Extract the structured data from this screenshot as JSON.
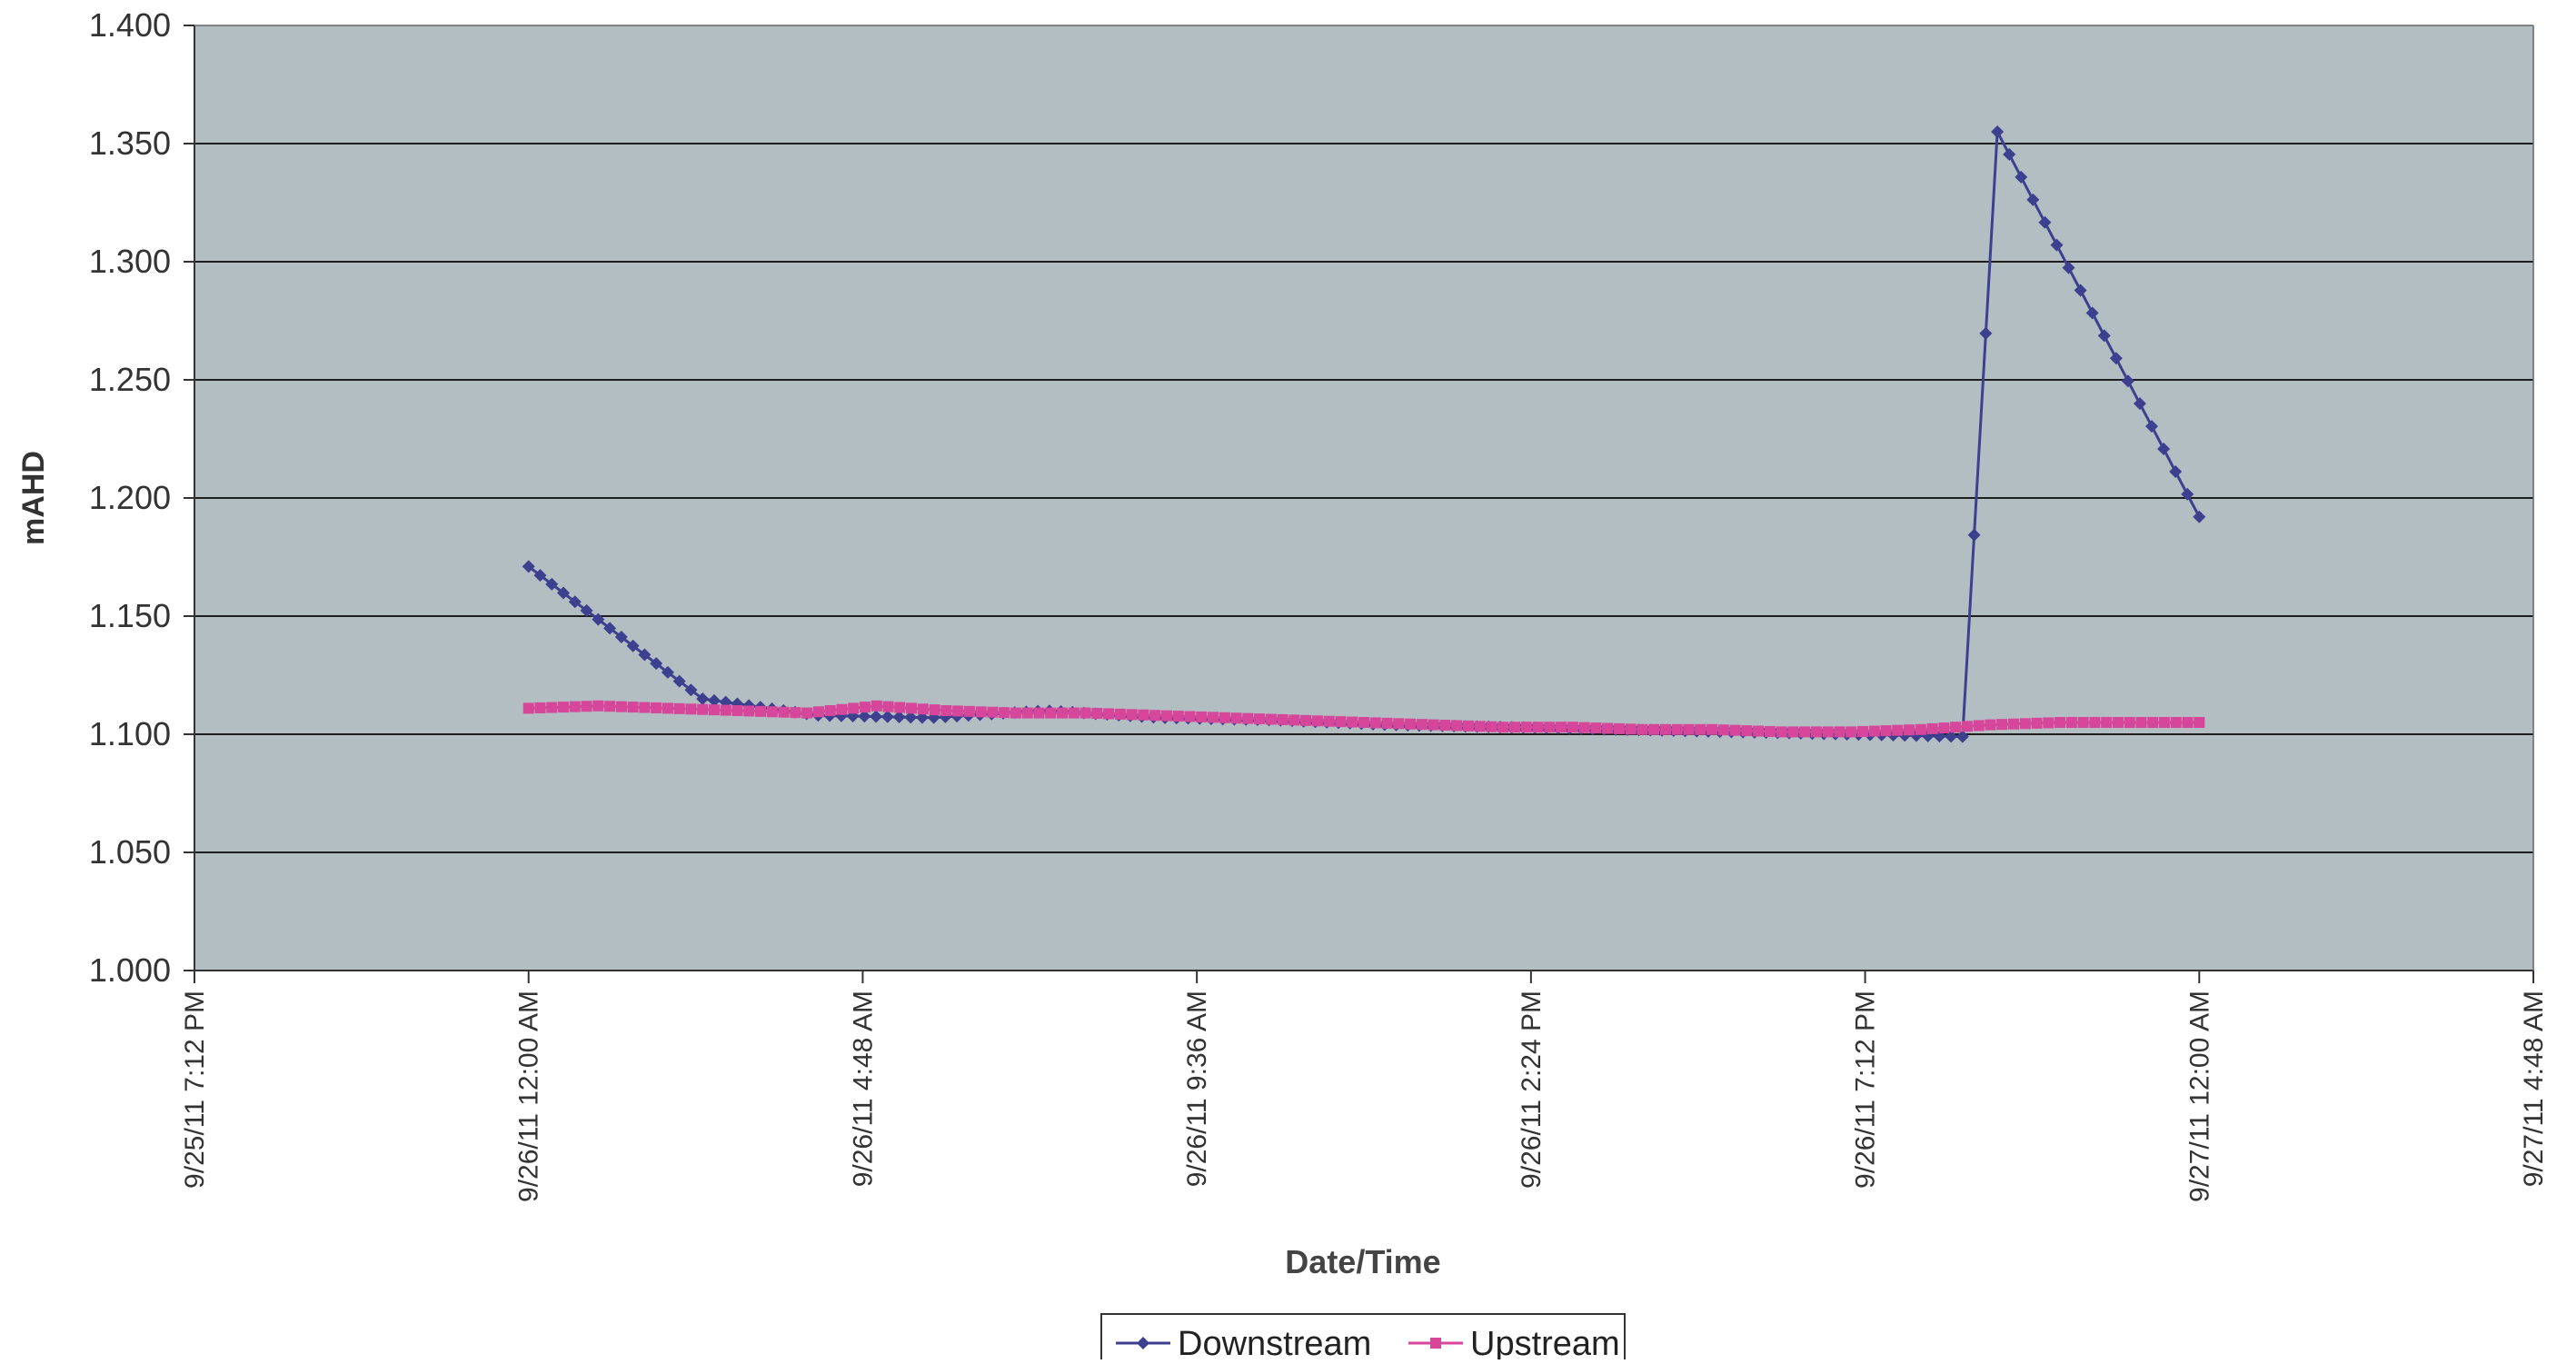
{
  "chart_data": {
    "type": "line",
    "title": "",
    "xlabel": "Date/Time",
    "ylabel": "mAHD",
    "x_unit": "hours",
    "x_ticks": [
      {
        "label": "9/25/11 7:12 PM",
        "hours": -4.8
      },
      {
        "label": "9/26/11 12:00 AM",
        "hours": 0
      },
      {
        "label": "9/26/11 4:48 AM",
        "hours": 4.8
      },
      {
        "label": "9/26/11 9:36 AM",
        "hours": 9.6
      },
      {
        "label": "9/26/11 2:24 PM",
        "hours": 14.4
      },
      {
        "label": "9/26/11 7:12 PM",
        "hours": 19.2
      },
      {
        "label": "9/27/11 12:00 AM",
        "hours": 24
      },
      {
        "label": "9/27/11 4:48 AM",
        "hours": 28.8
      }
    ],
    "xlim": [
      -4.8,
      28.8
    ],
    "ylim": [
      1.0,
      1.4
    ],
    "y_ticks": [
      "1.000",
      "1.050",
      "1.100",
      "1.150",
      "1.200",
      "1.250",
      "1.300",
      "1.350",
      "1.400"
    ],
    "grid": true,
    "legend_position": "bottom",
    "colors": {
      "plot_background": "#b3bec3",
      "gridline": "#1e1e1e",
      "downstream": "#3d3f8f",
      "upstream": "#d6469a"
    },
    "series": [
      {
        "name": "Downstream",
        "marker": "diamond",
        "segments": [
          {
            "x_start": 0,
            "x_end": 2.5,
            "y": [
              1.171,
              1.115
            ]
          },
          {
            "x_start": 2.5,
            "x_end": 20.6,
            "y": [
              1.115,
              1.108,
              1.107,
              1.11,
              1.107,
              1.106,
              1.104,
              1.103,
              1.102,
              1.101,
              1.1,
              1.099
            ]
          },
          {
            "x_start": 20.6,
            "x_end": 21.1,
            "y": [
              1.099,
              1.355
            ]
          },
          {
            "x_start": 21.1,
            "x_end": 24.0,
            "y": [
              1.355,
              1.192
            ]
          }
        ]
      },
      {
        "name": "Upstream",
        "marker": "square",
        "segments": [
          {
            "x_start": 0,
            "x_end": 24.0,
            "y": [
              1.111,
              1.112,
              1.111,
              1.11,
              1.109,
              1.112,
              1.11,
              1.109,
              1.109,
              1.108,
              1.107,
              1.106,
              1.105,
              1.104,
              1.103,
              1.103,
              1.102,
              1.102,
              1.101,
              1.101,
              1.102,
              1.104,
              1.105,
              1.105,
              1.105
            ]
          }
        ]
      }
    ]
  }
}
